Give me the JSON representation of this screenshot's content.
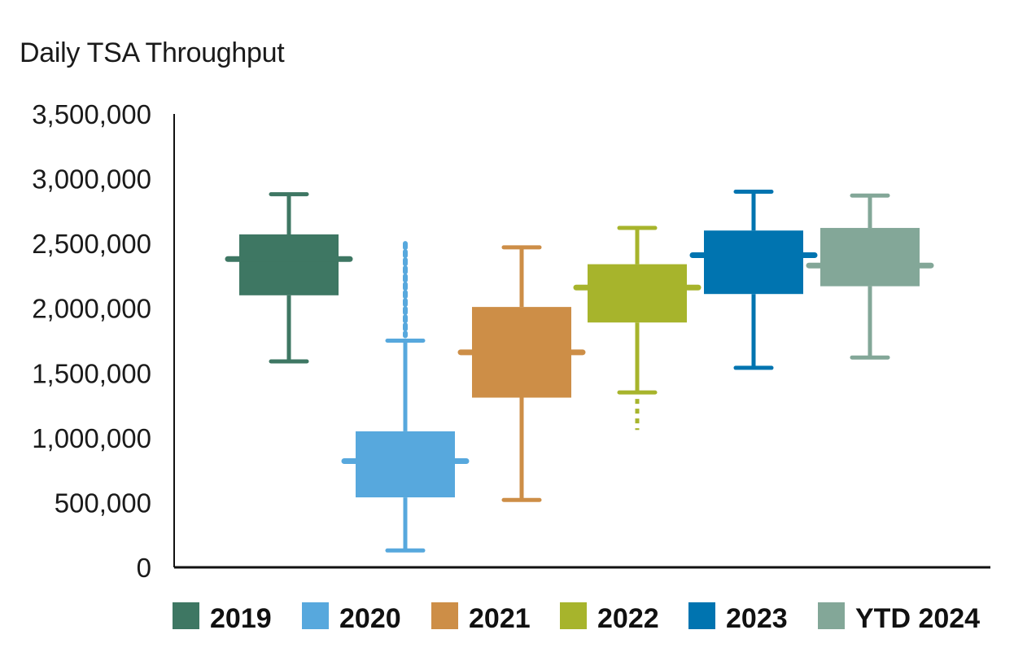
{
  "chart_data": {
    "type": "boxplot",
    "title": "Daily TSA Throughput",
    "xlabel": "",
    "ylabel": "",
    "ylim": [
      0,
      3500000
    ],
    "yticks": [
      {
        "value": 0,
        "label": "0"
      },
      {
        "value": 500000,
        "label": "500,000"
      },
      {
        "value": 1000000,
        "label": "1,000,000"
      },
      {
        "value": 1500000,
        "label": "1,500,000"
      },
      {
        "value": 2000000,
        "label": "2,000,000"
      },
      {
        "value": 2500000,
        "label": "2,500,000"
      },
      {
        "value": 3000000,
        "label": "3,000,000"
      },
      {
        "value": 3500000,
        "label": "3,500,000"
      }
    ],
    "grid": false,
    "legend_position": "bottom",
    "series": [
      {
        "name": "2019",
        "color": "#3e7763",
        "whisker_low": 1590000,
        "q1": 2100000,
        "median": 2380000,
        "q3": 2570000,
        "whisker_high": 2880000,
        "outliers_low_to": null,
        "outliers_high_to": null
      },
      {
        "name": "2020",
        "color": "#57a8dd",
        "whisker_low": 130000,
        "q1": 540000,
        "median": 820000,
        "q3": 1050000,
        "whisker_high": 1750000,
        "outliers_low_to": null,
        "outliers_high_to": 2500000
      },
      {
        "name": "2021",
        "color": "#cd8e47",
        "whisker_low": 520000,
        "q1": 1310000,
        "median": 1660000,
        "q3": 2010000,
        "whisker_high": 2470000,
        "outliers_low_to": null,
        "outliers_high_to": null
      },
      {
        "name": "2022",
        "color": "#a7b42c",
        "whisker_low": 1350000,
        "q1": 1890000,
        "median": 2160000,
        "q3": 2340000,
        "whisker_high": 2620000,
        "outliers_low_to": 1060000,
        "outliers_high_to": null
      },
      {
        "name": "2023",
        "color": "#0074b0",
        "whisker_low": 1540000,
        "q1": 2110000,
        "median": 2410000,
        "q3": 2600000,
        "whisker_high": 2900000,
        "outliers_low_to": null,
        "outliers_high_to": null
      },
      {
        "name": "YTD 2024",
        "color": "#83a798",
        "whisker_low": 1620000,
        "q1": 2170000,
        "median": 2330000,
        "q3": 2620000,
        "whisker_high": 2870000,
        "outliers_low_to": null,
        "outliers_high_to": null
      }
    ]
  }
}
